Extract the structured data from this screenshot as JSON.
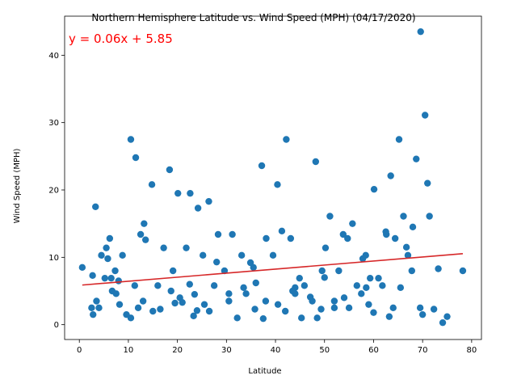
{
  "chart_data": {
    "type": "scatter",
    "title": "Northern Hemisphere Latitude vs. Wind Speed (MPH) (04/17/2020)",
    "xlabel": "Latitude",
    "ylabel": "Wind Speed (MPH)",
    "xlim": [
      -3,
      82
    ],
    "ylim": [
      -2.2,
      45.8
    ],
    "xticks": [
      0,
      10,
      20,
      30,
      40,
      50,
      60,
      70,
      80
    ],
    "yticks": [
      0,
      10,
      20,
      30,
      40
    ],
    "grid": false,
    "point_color": "#1f77b4",
    "line_color": "#d62728",
    "annotation": {
      "text": "y = 0.06x + 5.85",
      "color": "#ff0000"
    },
    "regression": {
      "slope": 0.06,
      "intercept": 5.85,
      "x_range": [
        0.6,
        78.2
      ]
    },
    "series": [
      {
        "x": [
          0.6,
          2.5,
          2.7,
          3.3,
          3.5,
          4.5,
          5.2,
          5.5,
          5.8,
          6.2,
          6.5,
          6.7,
          7.3,
          7.5,
          8.2,
          8.8,
          9.6,
          10.5,
          11.3,
          12.5,
          13.2,
          13.5,
          14.8,
          16.0,
          17.2,
          18.4,
          19.1,
          20.1,
          21.0,
          21.8,
          22.6,
          23.3,
          24.2,
          25.2,
          26.4,
          27.5,
          28.3,
          29.6,
          30.5,
          31.2,
          32.2,
          33.1,
          34.0,
          34.9,
          35.8,
          37.2,
          38.1,
          39.5,
          40.4,
          41.3,
          42.2,
          43.1,
          44.0,
          44.9,
          45.9,
          47.1,
          48.2,
          49.3,
          50.2,
          51.1,
          52.0,
          52.9,
          53.8,
          54.7,
          55.7,
          56.6,
          57.5,
          58.4,
          59.3,
          60.1,
          61.0,
          61.8,
          62.6,
          63.5,
          64.4,
          65.2,
          66.1,
          67.0,
          67.8,
          68.7,
          69.6,
          70.5,
          71.4,
          72.3,
          73.2,
          74.1,
          78.2,
          69.5,
          65.5,
          63.2,
          42.0,
          11.5,
          18.7,
          37.5,
          48.5,
          2.8,
          26.5,
          30.5,
          24.0,
          20.5,
          22.5,
          15.0,
          45.3,
          55.0,
          60.0,
          52.0,
          40.5,
          35.5,
          44.0,
          50.0,
          57.8,
          62.5,
          66.7,
          68.0,
          71.0,
          38.0,
          28.0,
          16.5,
          8.0,
          4.0,
          13.0,
          10.5,
          19.5,
          25.5,
          33.5,
          43.5,
          47.5,
          54.0,
          59.0,
          64.0,
          70.0,
          75.0,
          58.5,
          49.5,
          36.0,
          23.5,
          12.0
        ],
        "y": [
          8.5,
          2.5,
          7.3,
          17.5,
          3.5,
          10.3,
          6.9,
          11.4,
          9.8,
          12.8,
          6.9,
          5.0,
          8.0,
          4.6,
          3.0,
          10.3,
          1.5,
          27.5,
          5.8,
          13.4,
          15.0,
          12.6,
          20.8,
          5.8,
          11.4,
          23.0,
          8.0,
          19.5,
          3.3,
          11.4,
          19.5,
          1.3,
          17.3,
          10.3,
          18.3,
          5.8,
          13.4,
          8.0,
          4.6,
          13.4,
          1.0,
          10.3,
          4.6,
          9.2,
          2.3,
          23.6,
          12.8,
          10.3,
          20.8,
          13.9,
          27.5,
          12.8,
          4.6,
          6.9,
          5.8,
          4.1,
          24.2,
          2.3,
          11.4,
          16.1,
          3.5,
          8.0,
          13.4,
          12.8,
          15.0,
          5.8,
          4.6,
          10.3,
          6.9,
          20.1,
          6.9,
          5.8,
          13.4,
          22.1,
          12.8,
          27.5,
          16.1,
          10.3,
          8.0,
          24.6,
          43.5,
          31.1,
          16.1,
          2.3,
          8.3,
          0.3,
          8.0,
          2.5,
          5.5,
          1.2,
          2.0,
          24.8,
          5.0,
          0.9,
          1.0,
          1.5,
          2.0,
          3.5,
          2.1,
          4.0,
          6.0,
          2.0,
          1.0,
          2.5,
          1.8,
          2.5,
          3.0,
          8.5,
          5.5,
          7.0,
          9.8,
          13.8,
          11.5,
          14.5,
          21.0,
          3.5,
          9.3,
          2.3,
          6.5,
          2.5,
          3.5,
          1.0,
          3.2,
          3.0,
          5.5,
          5.0,
          3.5,
          4.0,
          3.0,
          2.5,
          1.5,
          1.2,
          5.5,
          8.0,
          6.2,
          4.5,
          2.5
        ]
      }
    ]
  }
}
